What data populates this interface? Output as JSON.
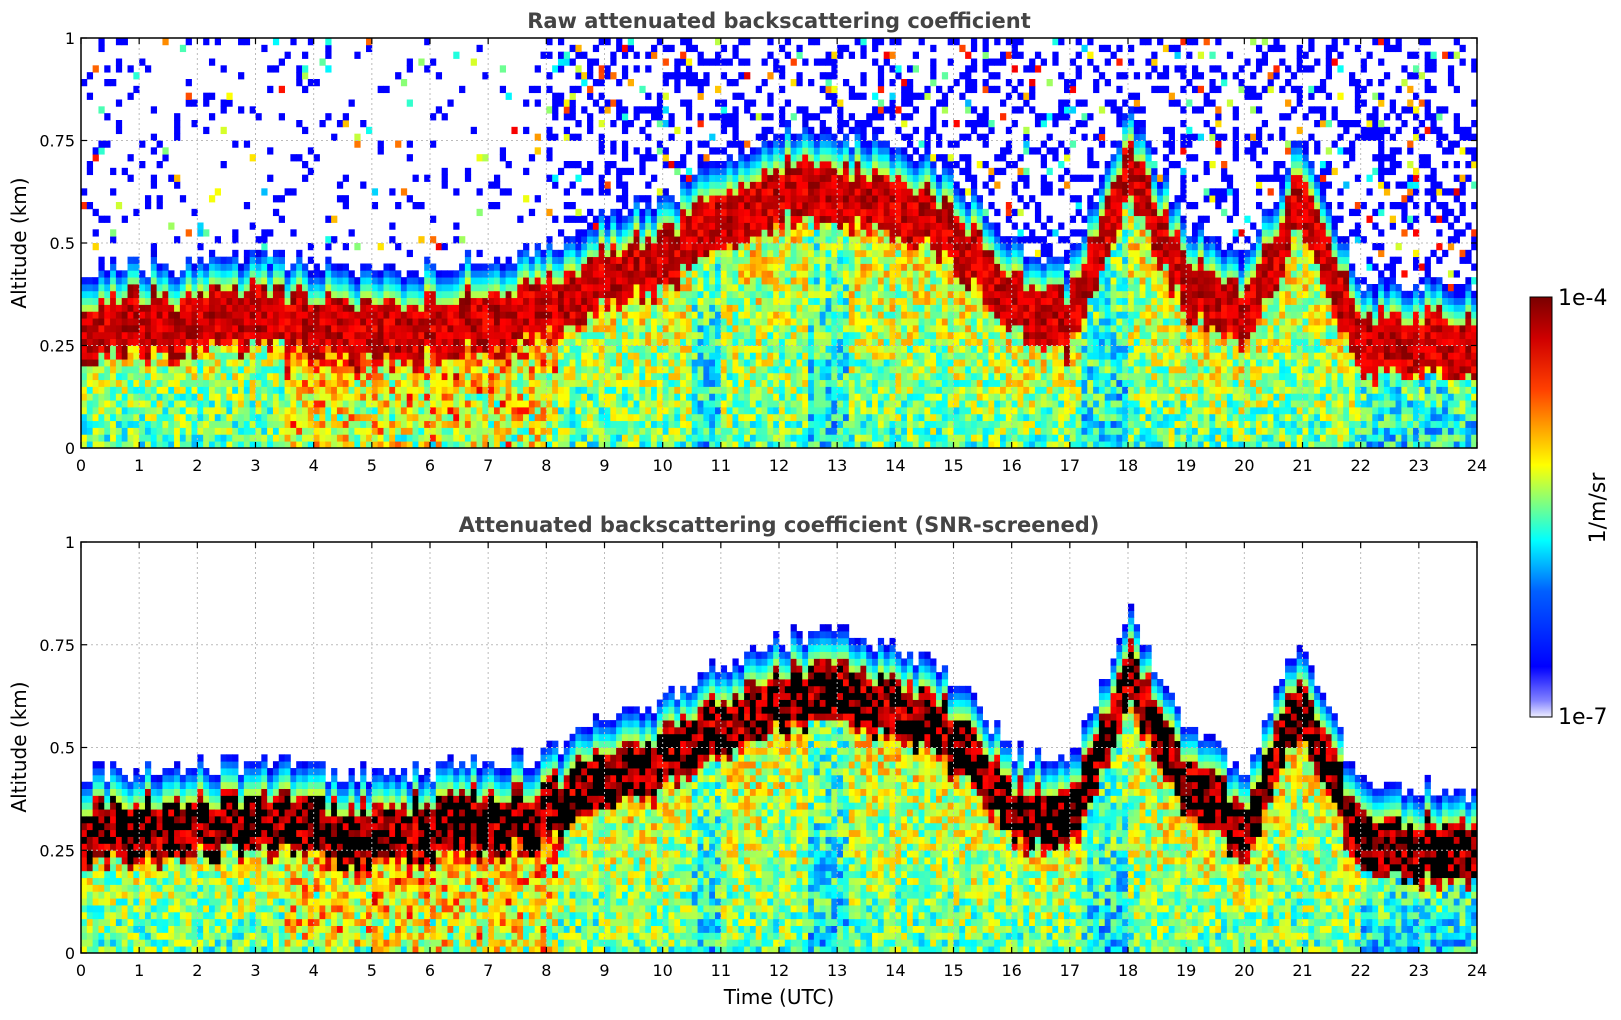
{
  "chart_data": [
    {
      "type": "heatmap",
      "title": "Raw attenuated backscattering coefficient",
      "xlabel": "",
      "ylabel": "Altitude (km)",
      "xlim": [
        0,
        24
      ],
      "ylim": [
        0,
        1
      ],
      "xticks": [
        "0",
        "1",
        "2",
        "3",
        "4",
        "5",
        "6",
        "7",
        "8",
        "9",
        "10",
        "11",
        "12",
        "13",
        "14",
        "15",
        "16",
        "17",
        "18",
        "19",
        "20",
        "21",
        "22",
        "23",
        "24"
      ],
      "yticks": [
        "0",
        "0.25",
        "0.5",
        "0.75",
        "1"
      ],
      "grid": true,
      "layer_profile": {
        "time_hours": [
          0,
          1,
          2,
          3,
          4,
          5,
          6,
          7,
          8,
          9,
          10,
          11,
          12,
          13,
          14,
          15,
          16,
          17,
          18,
          19,
          20,
          21,
          22,
          23,
          24
        ],
        "layer_center_km": [
          0.29,
          0.3,
          0.3,
          0.32,
          0.3,
          0.28,
          0.3,
          0.32,
          0.33,
          0.42,
          0.46,
          0.55,
          0.62,
          0.62,
          0.6,
          0.52,
          0.35,
          0.3,
          0.68,
          0.4,
          0.3,
          0.62,
          0.25,
          0.25,
          0.25
        ]
      }
    },
    {
      "type": "heatmap",
      "title": "Attenuated backscattering coefficient (SNR-screened)",
      "xlabel": "Time (UTC)",
      "ylabel": "Altitude (km)",
      "xlim": [
        0,
        24
      ],
      "ylim": [
        0,
        1
      ],
      "xticks": [
        "0",
        "1",
        "2",
        "3",
        "4",
        "5",
        "6",
        "7",
        "8",
        "9",
        "10",
        "11",
        "12",
        "13",
        "14",
        "15",
        "16",
        "17",
        "18",
        "19",
        "20",
        "21",
        "22",
        "23",
        "24"
      ],
      "yticks": [
        "0",
        "0.25",
        "0.5",
        "0.75",
        "1"
      ],
      "grid": true,
      "layer_profile": {
        "time_hours": [
          0,
          1,
          2,
          3,
          4,
          5,
          6,
          7,
          8,
          9,
          10,
          11,
          12,
          13,
          14,
          15,
          16,
          17,
          18,
          19,
          20,
          21,
          22,
          23,
          24
        ],
        "layer_center_km": [
          0.29,
          0.3,
          0.3,
          0.32,
          0.3,
          0.28,
          0.3,
          0.32,
          0.33,
          0.42,
          0.46,
          0.55,
          0.62,
          0.62,
          0.6,
          0.52,
          0.35,
          0.3,
          0.68,
          0.4,
          0.3,
          0.62,
          0.25,
          0.25,
          0.25
        ]
      }
    }
  ],
  "colorbar": {
    "label": "1/m/sr",
    "max_label": "1e-4",
    "min_label": "1e-7",
    "scale": "log",
    "colormap": "jet"
  }
}
